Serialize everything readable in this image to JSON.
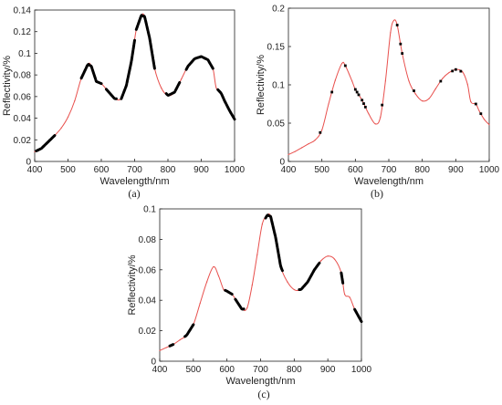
{
  "figure": {
    "panel_labels": [
      "(a)",
      "(b)",
      "(c)"
    ]
  },
  "colors": {
    "spectrum_line": "#e8504d",
    "selected_bands": "#000000",
    "axis": "#222222"
  },
  "chart_data": [
    {
      "type": "line",
      "title": "",
      "panel_label": "(a)",
      "xlabel": "Wavelength/nm",
      "ylabel": "Reflectivity/%",
      "xlim": [
        400,
        1000
      ],
      "ylim": [
        0,
        0.14
      ],
      "xticks": [
        400,
        500,
        600,
        700,
        800,
        900,
        1000
      ],
      "yticks": [
        0,
        0.02,
        0.04,
        0.06,
        0.08,
        0.1,
        0.12,
        0.14
      ],
      "ytick_labels": [
        "0",
        "0.02",
        "0.04",
        "0.06",
        "0.08",
        "0.1",
        "0.12",
        "0.14"
      ],
      "grid": false,
      "x": [
        400,
        420,
        440,
        460,
        480,
        500,
        520,
        540,
        560,
        570,
        585,
        600,
        620,
        640,
        660,
        675,
        690,
        705,
        720,
        730,
        745,
        760,
        780,
        800,
        820,
        840,
        860,
        880,
        900,
        920,
        935,
        945,
        960,
        970,
        985,
        1000
      ],
      "y": [
        0.009,
        0.012,
        0.018,
        0.024,
        0.031,
        0.041,
        0.056,
        0.077,
        0.09,
        0.088,
        0.074,
        0.072,
        0.065,
        0.058,
        0.058,
        0.07,
        0.092,
        0.122,
        0.135,
        0.134,
        0.114,
        0.086,
        0.068,
        0.061,
        0.064,
        0.076,
        0.088,
        0.095,
        0.097,
        0.094,
        0.086,
        0.068,
        0.063,
        0.056,
        0.047,
        0.039
      ],
      "selected_ranges": [
        [
          405,
          460
        ],
        [
          540,
          600
        ],
        [
          615,
          645
        ],
        [
          660,
          700
        ],
        [
          705,
          760
        ],
        [
          795,
          835
        ],
        [
          855,
          935
        ],
        [
          950,
          1000
        ]
      ]
    },
    {
      "type": "line",
      "title": "",
      "panel_label": "(b)",
      "xlabel": "Wavelength/nm",
      "ylabel": "Reflectivity/%",
      "xlim": [
        400,
        1000
      ],
      "ylim": [
        0,
        0.2
      ],
      "xticks": [
        400,
        500,
        600,
        700,
        800,
        900,
        1000
      ],
      "yticks": [
        0,
        0.05,
        0.1,
        0.15,
        0.2
      ],
      "ytick_labels": [
        "0",
        "0.05",
        "0.1",
        "0.15",
        "0.2"
      ],
      "grid": false,
      "x": [
        400,
        420,
        440,
        460,
        480,
        500,
        520,
        540,
        560,
        570,
        590,
        600,
        620,
        640,
        660,
        675,
        690,
        705,
        715,
        725,
        740,
        760,
        780,
        800,
        820,
        840,
        860,
        880,
        900,
        920,
        935,
        945,
        960,
        970,
        985,
        1000
      ],
      "y": [
        0.009,
        0.013,
        0.018,
        0.023,
        0.028,
        0.041,
        0.075,
        0.106,
        0.128,
        0.125,
        0.105,
        0.094,
        0.08,
        0.062,
        0.049,
        0.058,
        0.105,
        0.168,
        0.184,
        0.178,
        0.141,
        0.105,
        0.088,
        0.079,
        0.082,
        0.095,
        0.108,
        0.116,
        0.12,
        0.117,
        0.101,
        0.078,
        0.075,
        0.066,
        0.055,
        0.048
      ],
      "selected_points": [
        495,
        530,
        570,
        600,
        605,
        610,
        620,
        625,
        630,
        680,
        725,
        735,
        740,
        775,
        855,
        890,
        900,
        915,
        960,
        975
      ]
    },
    {
      "type": "line",
      "title": "",
      "panel_label": "(c)",
      "xlabel": "Wavelength/nm",
      "ylabel": "Reflectivity/%",
      "xlim": [
        400,
        1000
      ],
      "ylim": [
        0,
        0.1
      ],
      "xticks": [
        400,
        500,
        600,
        700,
        800,
        900,
        1000
      ],
      "yticks": [
        0,
        0.02,
        0.04,
        0.06,
        0.08,
        0.1
      ],
      "ytick_labels": [
        "0",
        "0.02",
        "0.04",
        "0.06",
        "0.08",
        "0.1"
      ],
      "grid": false,
      "x": [
        400,
        420,
        440,
        460,
        480,
        500,
        520,
        540,
        560,
        575,
        590,
        600,
        615,
        630,
        645,
        660,
        675,
        690,
        705,
        720,
        730,
        745,
        760,
        780,
        800,
        820,
        840,
        860,
        880,
        900,
        920,
        940,
        950,
        965,
        980,
        1000
      ],
      "y": [
        0.007,
        0.009,
        0.011,
        0.014,
        0.017,
        0.024,
        0.038,
        0.052,
        0.062,
        0.056,
        0.047,
        0.046,
        0.044,
        0.039,
        0.034,
        0.035,
        0.05,
        0.07,
        0.09,
        0.096,
        0.095,
        0.081,
        0.062,
        0.052,
        0.047,
        0.047,
        0.052,
        0.06,
        0.066,
        0.069,
        0.067,
        0.058,
        0.044,
        0.042,
        0.034,
        0.026
      ],
      "selected_ranges": [
        [
          430,
          440
        ],
        [
          475,
          500
        ],
        [
          595,
          615
        ],
        [
          625,
          650
        ],
        [
          715,
          765
        ],
        [
          815,
          875
        ],
        [
          940,
          945
        ],
        [
          980,
          1000
        ]
      ]
    }
  ]
}
